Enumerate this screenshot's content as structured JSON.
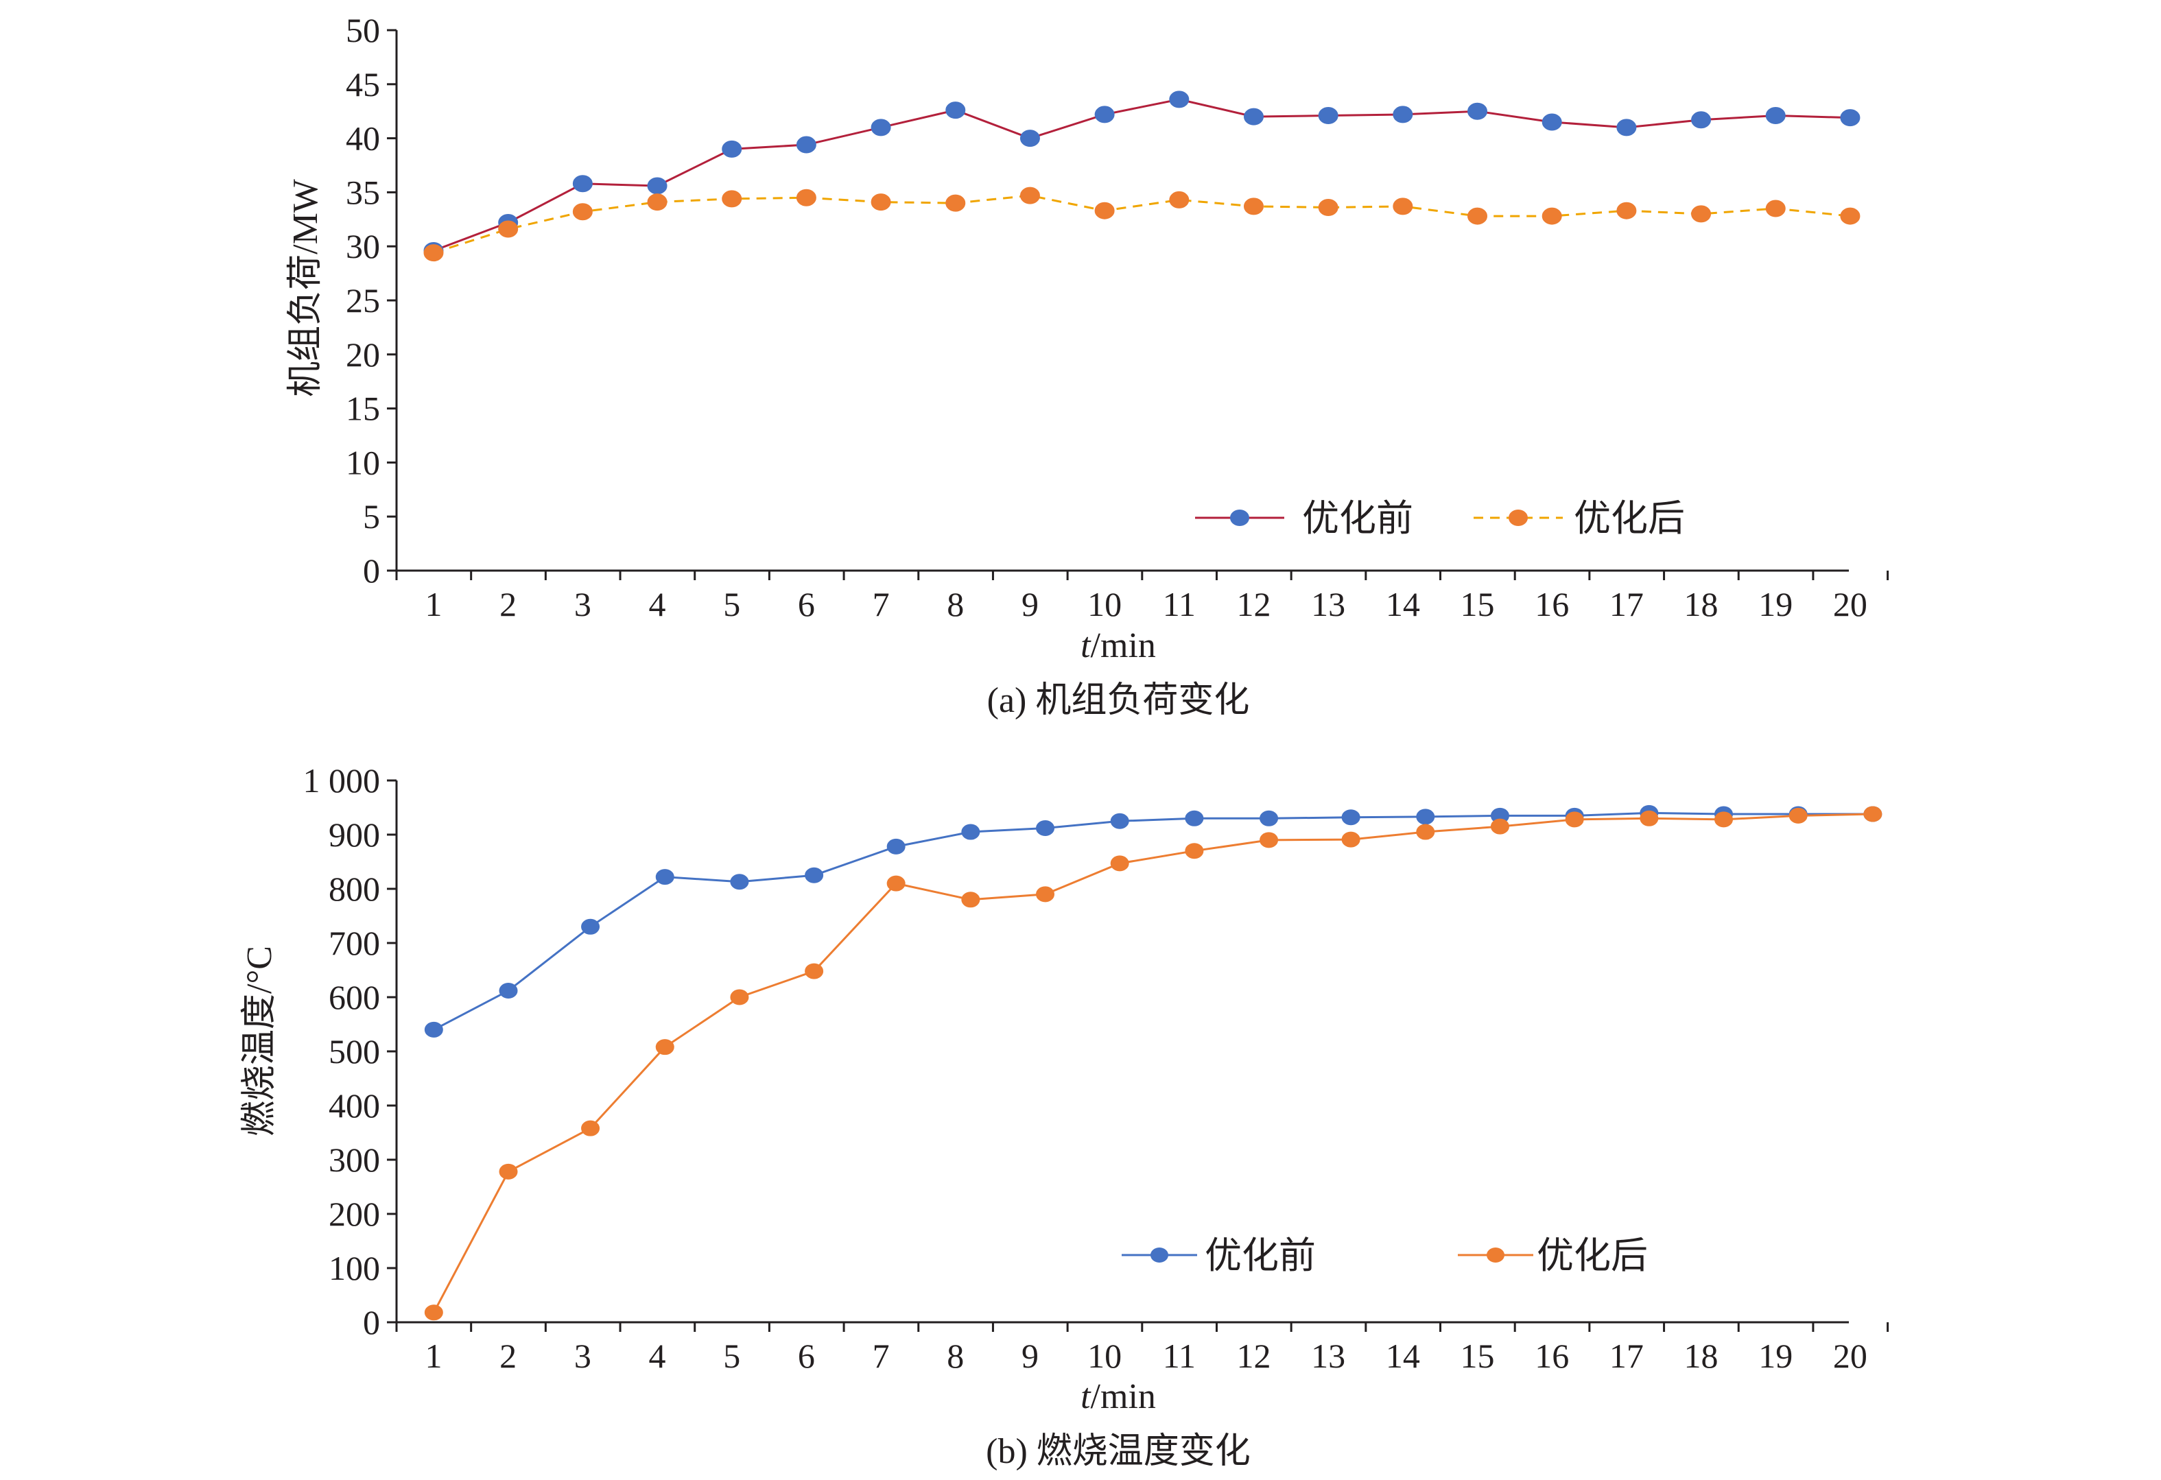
{
  "chart_data": [
    {
      "type": "line",
      "caption": "(a) 机组负荷变化",
      "xlabel_italic": "t",
      "xlabel_unit": "/min",
      "ylabel": "机组负荷/MW",
      "categories": [
        "1",
        "2",
        "3",
        "4",
        "5",
        "6",
        "7",
        "8",
        "9",
        "10",
        "11",
        "12",
        "13",
        "14",
        "15",
        "16",
        "17",
        "18",
        "19",
        "20"
      ],
      "x": [
        1,
        2,
        3,
        4,
        5,
        6,
        7,
        8,
        9,
        10,
        11,
        12,
        13,
        14,
        15,
        16,
        17,
        18,
        19,
        20
      ],
      "ylim": [
        0,
        50
      ],
      "yticks": [
        "0",
        "5",
        "10",
        "15",
        "20",
        "25",
        "30",
        "35",
        "40",
        "45",
        "50"
      ],
      "series": [
        {
          "name": "优化前",
          "values": [
            29.6,
            32.2,
            35.8,
            35.6,
            39.0,
            39.4,
            41.0,
            42.6,
            40.0,
            42.2,
            43.6,
            42.0,
            42.1,
            42.2,
            42.5,
            41.5,
            41.0,
            41.7,
            42.1,
            41.9
          ],
          "line_color": "#b3203b",
          "marker_color": "#4472c4",
          "dash": false
        },
        {
          "name": "优化后",
          "values": [
            29.4,
            31.6,
            33.2,
            34.1,
            34.4,
            34.5,
            34.1,
            34.0,
            34.7,
            33.3,
            34.3,
            33.7,
            33.6,
            33.7,
            32.8,
            32.8,
            33.3,
            33.0,
            33.5,
            32.8
          ],
          "line_color": "#f0a500",
          "marker_color": "#ed7d31",
          "dash": true
        }
      ],
      "legend": "bottom-right"
    },
    {
      "type": "line",
      "caption": "(b) 燃烧温度变化",
      "xlabel_italic": "t",
      "xlabel_unit": "/min",
      "ylabel": "燃烧温度/°C",
      "categories": [
        "1",
        "2",
        "3",
        "4",
        "5",
        "6",
        "7",
        "8",
        "9",
        "10",
        "11",
        "12",
        "13",
        "14",
        "15",
        "16",
        "17",
        "18",
        "19",
        "20"
      ],
      "x": [
        0.5,
        1.5,
        2.6,
        3.6,
        4.6,
        5.6,
        6.7,
        7.7,
        8.7,
        9.7,
        10.7,
        11.7,
        12.8,
        13.8,
        14.8,
        15.8,
        16.8,
        17.8,
        18.8,
        19.8
      ],
      "ylim": [
        0,
        1000
      ],
      "yticks": [
        "0",
        "100",
        "200",
        "300",
        "400",
        "500",
        "600",
        "700",
        "800",
        "900",
        "1 000"
      ],
      "series": [
        {
          "name": "优化前",
          "values": [
            540,
            612,
            730,
            822,
            813,
            825,
            878,
            905,
            912,
            925,
            930,
            930,
            932,
            933,
            935,
            935,
            940,
            938,
            938,
            938
          ],
          "line_color": "#4472c4",
          "marker_color": "#4472c4",
          "dash": false
        },
        {
          "name": "优化后",
          "values": [
            18,
            278,
            358,
            508,
            600,
            648,
            810,
            780,
            790,
            847,
            870,
            890,
            891,
            905,
            915,
            928,
            930,
            928,
            935,
            938
          ],
          "line_color": "#ed7d31",
          "marker_color": "#ed7d31",
          "dash": false
        }
      ],
      "legend": "bottom-right"
    }
  ]
}
